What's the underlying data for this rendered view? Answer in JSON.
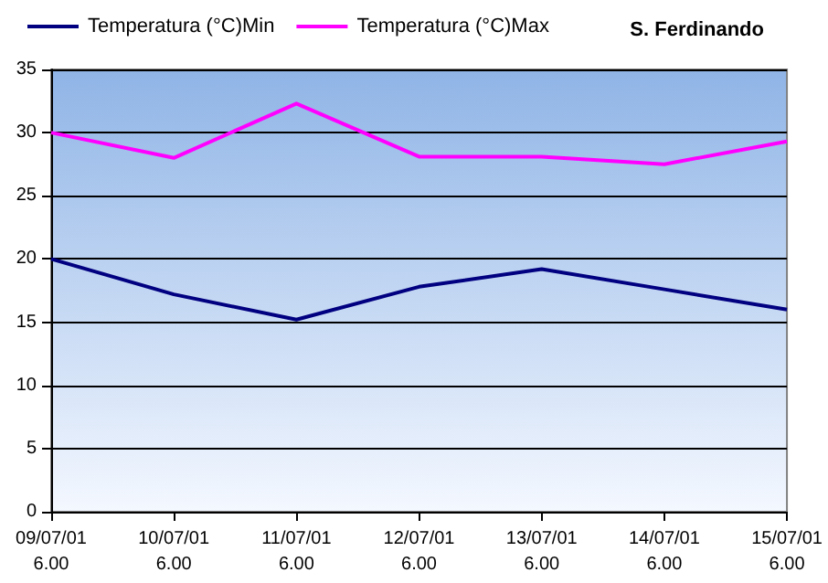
{
  "chart_data": {
    "type": "line",
    "title": "S. Ferdinando",
    "categories": [
      "09/07/01\n6.00",
      "10/07/01\n6.00",
      "11/07/01\n6.00",
      "12/07/01\n6.00",
      "13/07/01\n6.00",
      "14/07/01\n6.00",
      "15/07/01\n6.00"
    ],
    "series": [
      {
        "name": "Temperatura (°C)Min",
        "color": "#000080",
        "values": [
          20,
          17.2,
          15.2,
          17.8,
          19.2,
          17.6,
          16
        ]
      },
      {
        "name": "Temperatura (°C)Max",
        "color": "#ff00ff",
        "values": [
          30,
          28,
          32.3,
          28.1,
          28.1,
          27.5,
          29.3
        ]
      }
    ],
    "ylim": [
      0,
      35
    ],
    "yticks": [
      0,
      5,
      10,
      15,
      20,
      25,
      30,
      35
    ],
    "grid": "y",
    "legend": "top left",
    "marker": "none",
    "line_style": "solid"
  }
}
